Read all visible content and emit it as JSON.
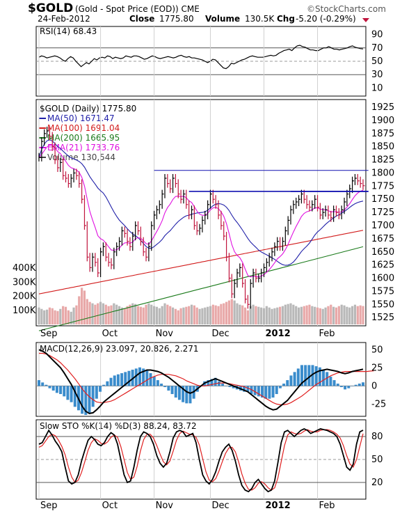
{
  "header": {
    "symbol": "$GOLD",
    "description": "(Gold - Spot Price (EOD)) CME",
    "watermark": "©StockCharts.com",
    "date": "24-Feb-2012",
    "close_label": "Close",
    "close_value": "1775.80",
    "volume_label": "Volume",
    "volume_value": "130.5K",
    "chg_label": "Chg",
    "chg_value": "-5.20 (-0.29%)"
  },
  "colors": {
    "ma50": "#1f1fa8",
    "ma100": "#d21c1c",
    "ma200": "#1a7a1a",
    "ema21": "#e010e0",
    "price_up": "#000000",
    "price_down": "#c0143c",
    "vol_up": "#b8b8b8",
    "vol_down": "#e8a8a8",
    "macd_hist": "#3a8ccc",
    "stoch_k": "#000000",
    "stoch_d": "#e02020",
    "trendline": "#1010b0"
  },
  "chart_data": [
    {
      "type": "line",
      "name": "rsi",
      "title": "RSI(14) 68.43",
      "ylim": [
        0,
        100
      ],
      "yticks": [
        10,
        30,
        50,
        70,
        90
      ],
      "hlines": [
        30,
        50,
        70
      ],
      "x_index_range": [
        0,
        123
      ],
      "series": [
        {
          "name": "RSI(14)",
          "values": [
            56,
            58,
            57,
            55,
            56,
            57,
            58,
            57,
            55,
            52,
            50,
            54,
            57,
            55,
            50,
            46,
            42,
            45,
            48,
            46,
            50,
            54,
            52,
            55,
            56,
            55,
            58,
            57,
            54,
            56,
            55,
            54,
            55,
            58,
            57,
            56,
            58,
            58,
            57,
            55,
            53,
            54,
            56,
            58,
            57,
            55,
            54,
            55,
            56,
            57,
            56,
            55,
            56,
            58,
            59,
            57,
            56,
            57,
            55,
            55,
            54,
            53,
            52,
            50,
            48,
            50,
            53,
            52,
            48,
            44,
            40,
            39,
            42,
            47,
            46,
            48,
            50,
            52,
            53,
            55,
            57,
            58,
            57,
            56,
            56,
            56,
            57,
            58,
            59,
            58,
            59,
            62,
            64,
            66,
            67,
            68,
            66,
            70,
            73,
            74,
            72,
            71,
            69,
            67,
            67,
            66,
            66,
            68,
            70,
            70,
            72,
            70,
            68,
            68,
            67,
            68,
            69,
            70,
            72,
            73,
            71,
            70,
            69,
            68.43
          ]
        }
      ]
    },
    {
      "type": "line",
      "name": "price",
      "title": "$GOLD (Daily) 1775.80",
      "ylim": [
        1512,
        1937
      ],
      "yticks": [
        1525,
        1550,
        1575,
        1600,
        1625,
        1650,
        1675,
        1700,
        1725,
        1750,
        1775,
        1800,
        1825,
        1850,
        1875,
        1900,
        1925
      ],
      "xlabels": [
        "Sep",
        "Oct",
        "Nov",
        "Dec",
        "2012",
        "Feb"
      ],
      "xlabel_positions": [
        0,
        23,
        43,
        64,
        84,
        104
      ],
      "x_index_range": [
        0,
        123
      ],
      "legend": [
        {
          "label": "MA(50) 1671.47",
          "color_key": "ma50"
        },
        {
          "label": "MA(100) 1691.04",
          "color_key": "ma100"
        },
        {
          "label": "MA(200) 1665.95",
          "color_key": "ma200"
        },
        {
          "label": "EMA(21) 1733.76",
          "color_key": "ema21"
        },
        {
          "label": "Volume 130,544",
          "color_key": "vol_up"
        }
      ],
      "close": [
        1830,
        1860,
        1875,
        1880,
        1870,
        1850,
        1825,
        1810,
        1820,
        1795,
        1790,
        1780,
        1790,
        1800,
        1795,
        1780,
        1750,
        1700,
        1640,
        1620,
        1640,
        1630,
        1610,
        1650,
        1660,
        1640,
        1630,
        1625,
        1650,
        1660,
        1670,
        1690,
        1685,
        1670,
        1660,
        1680,
        1700,
        1690,
        1670,
        1650,
        1640,
        1660,
        1700,
        1720,
        1730,
        1740,
        1760,
        1790,
        1780,
        1770,
        1790,
        1780,
        1760,
        1750,
        1760,
        1740,
        1720,
        1730,
        1700,
        1690,
        1695,
        1710,
        1720,
        1740,
        1760,
        1750,
        1740,
        1720,
        1700,
        1680,
        1640,
        1600,
        1570,
        1590,
        1610,
        1620,
        1590,
        1560,
        1550,
        1590,
        1610,
        1600,
        1600,
        1610,
        1620,
        1630,
        1640,
        1650,
        1660,
        1670,
        1660,
        1670,
        1690,
        1710,
        1730,
        1740,
        1745,
        1750,
        1760,
        1750,
        1740,
        1735,
        1740,
        1750,
        1735,
        1720,
        1725,
        1730,
        1720,
        1715,
        1730,
        1725,
        1720,
        1730,
        1745,
        1760,
        1770,
        1785,
        1790,
        1785,
        1780,
        1775.8
      ],
      "volume_k": [
        120,
        110,
        100,
        105,
        120,
        115,
        100,
        95,
        110,
        130,
        125,
        100,
        90,
        120,
        135,
        200,
        260,
        240,
        180,
        160,
        150,
        140,
        150,
        160,
        150,
        140,
        130,
        135,
        150,
        140,
        130,
        120,
        115,
        130,
        140,
        150,
        145,
        130,
        125,
        120,
        140,
        150,
        140,
        130,
        125,
        115,
        130,
        150,
        140,
        130,
        120,
        110,
        100,
        115,
        120,
        125,
        130,
        140,
        135,
        120,
        110,
        115,
        120,
        125,
        130,
        140,
        135,
        130,
        145,
        150,
        160,
        170,
        180,
        170,
        150,
        140,
        135,
        120,
        100,
        130,
        140,
        130,
        125,
        120,
        115,
        130,
        120,
        110,
        115,
        120,
        125,
        130,
        140,
        145,
        150,
        140,
        130,
        120,
        125,
        130,
        135,
        140,
        130,
        125,
        120,
        115,
        110,
        120,
        130,
        140,
        125,
        120,
        130,
        140,
        135,
        125,
        120,
        130,
        140,
        130,
        135,
        130.5
      ],
      "trendlines": [
        {
          "from": [
            43,
            1805
          ],
          "to": [
            123,
            1805
          ]
        },
        {
          "from": [
            56,
            1765
          ],
          "to": [
            123,
            1765
          ]
        },
        {
          "from": [
            94,
            1765
          ],
          "to": [
            123,
            1765
          ]
        }
      ]
    },
    {
      "type": "line",
      "name": "macd",
      "title": "MACD(12,26,9) 23.097, 20.826, 2.271",
      "ylim": [
        -40,
        58
      ],
      "yticks": [
        -25,
        0,
        25,
        50
      ],
      "x_index_range": [
        0,
        123
      ],
      "series": [
        {
          "name": "MACD",
          "values": [
            50,
            48,
            45,
            40,
            35,
            30,
            25,
            18,
            10,
            2,
            -8,
            -18,
            -28,
            -35,
            -38,
            -37,
            -33,
            -28,
            -22,
            -18,
            -14,
            -10,
            -6,
            -2,
            2,
            6,
            10,
            14,
            18,
            20,
            22,
            22,
            21,
            20,
            18,
            15,
            12,
            8,
            4,
            0,
            -4,
            -8,
            -10,
            -8,
            -4,
            0,
            4,
            6,
            8,
            10,
            8,
            6,
            4,
            2,
            0,
            -2,
            -4,
            -6,
            -8,
            -12,
            -16,
            -20,
            -24,
            -28,
            -31,
            -33,
            -32,
            -28,
            -24,
            -20,
            -14,
            -8,
            -2,
            4,
            8,
            12,
            16,
            19,
            21,
            22,
            23,
            22,
            21,
            20,
            18,
            17,
            18,
            20,
            21,
            22,
            23.097
          ]
        },
        {
          "name": "Signal",
          "values": [
            45,
            45,
            44,
            42,
            39,
            36,
            32,
            27,
            22,
            16,
            10,
            3,
            -4,
            -10,
            -15,
            -19,
            -22,
            -23,
            -23,
            -22,
            -21,
            -19,
            -16,
            -13,
            -10,
            -7,
            -4,
            -1,
            2,
            5,
            8,
            11,
            13,
            15,
            16,
            16,
            16,
            15,
            14,
            12,
            10,
            7,
            5,
            3,
            1,
            0,
            0,
            1,
            2,
            3,
            4,
            4,
            4,
            3,
            2,
            1,
            0,
            -1,
            -3,
            -5,
            -8,
            -11,
            -14,
            -17,
            -20,
            -23,
            -25,
            -26,
            -26,
            -25,
            -23,
            -20,
            -17,
            -14,
            -10,
            -6,
            -2,
            2,
            5,
            8,
            11,
            14,
            16,
            18,
            19,
            20,
            20,
            20,
            20,
            20,
            20,
            20,
            20.5,
            20.826
          ]
        }
      ]
    },
    {
      "type": "line",
      "name": "stochastic",
      "title": "Slow STO %K(14) %D(3) 88.24, 83.72",
      "ylim": [
        0,
        100
      ],
      "yticks": [
        20,
        50,
        80
      ],
      "hlines": [
        20,
        80
      ],
      "x_index_range": [
        0,
        123
      ],
      "series": [
        {
          "name": "%K",
          "values": [
            70,
            72,
            80,
            88,
            82,
            74,
            68,
            60,
            40,
            22,
            18,
            20,
            30,
            48,
            62,
            75,
            80,
            76,
            70,
            68,
            72,
            80,
            85,
            82,
            70,
            50,
            30,
            20,
            22,
            40,
            62,
            80,
            86,
            84,
            80,
            70,
            55,
            45,
            40,
            45,
            60,
            78,
            86,
            88,
            86,
            80,
            82,
            84,
            72,
            50,
            30,
            22,
            18,
            24,
            34,
            48,
            60,
            66,
            70,
            62,
            48,
            30,
            16,
            10,
            8,
            12,
            20,
            24,
            18,
            12,
            8,
            10,
            22,
            46,
            72,
            86,
            88,
            84,
            80,
            84,
            88,
            90,
            88,
            84,
            86,
            88,
            90,
            89,
            88,
            86,
            84,
            80,
            70,
            55,
            40,
            36,
            44,
            70,
            86,
            88.24
          ]
        },
        {
          "name": "%D",
          "values": [
            66,
            68,
            74,
            80,
            83,
            81,
            75,
            67,
            56,
            40,
            27,
            20,
            23,
            33,
            47,
            62,
            72,
            77,
            75,
            71,
            70,
            73,
            79,
            82,
            79,
            67,
            50,
            33,
            24,
            27,
            41,
            61,
            76,
            83,
            83,
            78,
            68,
            57,
            47,
            43,
            48,
            61,
            75,
            84,
            87,
            85,
            83,
            82,
            79,
            69,
            51,
            34,
            23,
            21,
            25,
            35,
            47,
            58,
            65,
            66,
            60,
            47,
            31,
            19,
            11,
            10,
            13,
            19,
            21,
            18,
            13,
            10,
            13,
            26,
            47,
            68,
            82,
            86,
            84,
            83,
            84,
            87,
            89,
            87,
            86,
            86,
            88,
            89,
            89,
            88,
            86,
            83,
            78,
            68,
            55,
            44,
            40,
            50,
            67,
            83.72
          ]
        }
      ]
    }
  ]
}
